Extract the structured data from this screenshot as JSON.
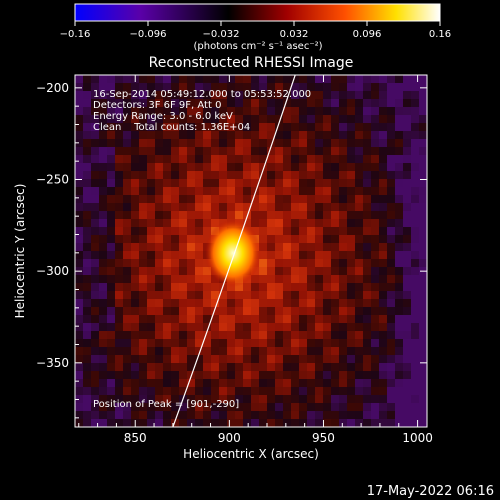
{
  "colorbar": {
    "ticks": [
      {
        "value": -0.16,
        "label": "-0.16"
      },
      {
        "value": -0.096,
        "label": "-0.096"
      },
      {
        "value": -0.032,
        "label": "-0.032"
      },
      {
        "value": 0.032,
        "label": "0.032"
      },
      {
        "value": 0.096,
        "label": "0.096"
      },
      {
        "value": 0.16,
        "label": "0.16"
      }
    ],
    "unit_label": "(photons cm⁻² s⁻¹ asec⁻²)",
    "range": [
      -0.16,
      0.16
    ],
    "colors": [
      "#0000ff",
      "#5a00a8",
      "#000000",
      "#a00000",
      "#ff5000",
      "#ffe000",
      "#ffffff"
    ]
  },
  "chart_data": {
    "type": "heatmap",
    "title": "Reconstructed RHESSI Image",
    "xlabel": "Heliocentric X (arcsec)",
    "ylabel": "Heliocentric Y (arcsec)",
    "xlim": [
      818,
      1005
    ],
    "ylim": [
      -385,
      -193
    ],
    "xticks": [
      850,
      900,
      950,
      1000
    ],
    "yticks": [
      -200,
      -250,
      -300,
      -350
    ],
    "peak": {
      "x": 901,
      "y": -290
    },
    "limb_line": [
      {
        "x": 870,
        "y": -385
      },
      {
        "x": 900,
        "y": -300
      },
      {
        "x": 935,
        "y": -193
      }
    ],
    "annotations": [
      "16-Sep-2014 05:49:12.000 to 05:53:52.000",
      "Detectors: 3F 6F 9F, Att 0",
      "Energy Range: 3.0 - 6.0 keV",
      "Clean    Total counts: 1.36E+04"
    ],
    "peak_label": "Position of Peak = [901,-290]"
  },
  "footer": {
    "timestamp": "17-May-2022 06:16"
  }
}
